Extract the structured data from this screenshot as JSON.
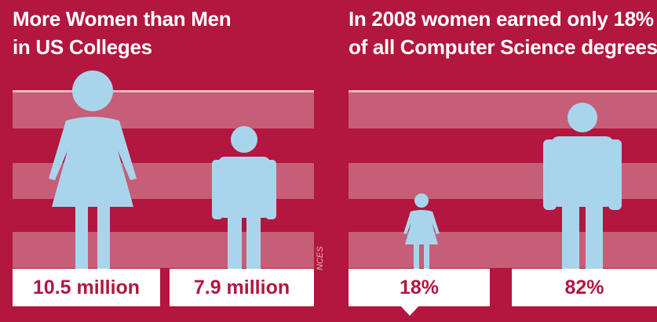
{
  "colors": {
    "background": "#b3163e",
    "band": "#c65e77",
    "line": "#e9b7c3",
    "figure": "#a9d5ec",
    "label_box": "#ffffff",
    "label_text": "#b3163e"
  },
  "source_note": "NCES",
  "chart_data": [
    {
      "type": "bar",
      "title_lines": [
        "More Women than Men",
        "in US Colleges"
      ],
      "categories": [
        "Women",
        "Men"
      ],
      "values": [
        10.5,
        7.9
      ],
      "value_labels": [
        "10.5 million",
        "7.9 million"
      ],
      "icons": [
        "woman-icon",
        "man-icon"
      ]
    },
    {
      "type": "bar",
      "title_lines": [
        "In 2008 women earned only 18%",
        "of all Computer Science degrees"
      ],
      "categories": [
        "Women",
        "Men"
      ],
      "values": [
        18,
        82
      ],
      "value_labels": [
        "18%",
        "82%"
      ],
      "icons": [
        "woman-icon",
        "man-icon"
      ]
    }
  ]
}
